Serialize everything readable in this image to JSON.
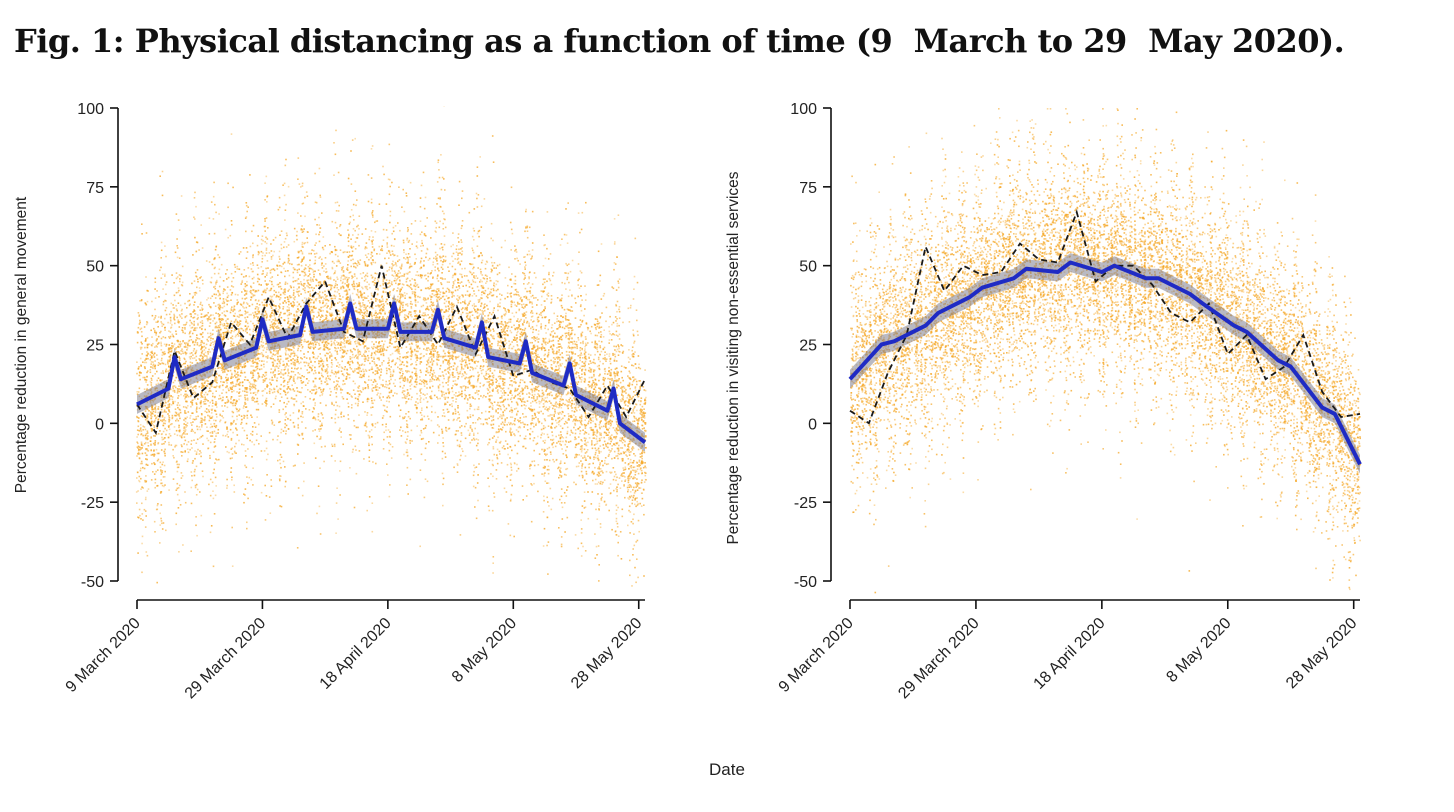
{
  "figure_title": "Fig. 1: Physical distancing as a function of time (9  March to 29  May 2020).",
  "shared_xlabel": "Date",
  "colors": {
    "points": "#f5a623",
    "fit": "#1f2bc4",
    "band": "#7f7f8f",
    "observed": "#1a1a1a"
  },
  "chart_data": [
    {
      "type": "scatter",
      "ylabel": "Percentage reduction in general movement",
      "x_ticks": [
        "9 March 2020",
        "29 March 2020",
        "18 April 2020",
        "8 May 2020",
        "28 May 2020"
      ],
      "xlim": [
        "2020-03-09",
        "2020-05-29"
      ],
      "y_ticks": [
        100,
        75,
        50,
        25,
        0,
        -25,
        -50
      ],
      "ylim": [
        -50,
        100
      ],
      "series": [
        {
          "role": "fitted",
          "x": [
            "2020-03-09",
            "2020-03-14",
            "2020-03-15",
            "2020-03-16",
            "2020-03-21",
            "2020-03-22",
            "2020-03-23",
            "2020-03-28",
            "2020-03-29",
            "2020-03-30",
            "2020-04-04",
            "2020-04-05",
            "2020-04-06",
            "2020-04-11",
            "2020-04-12",
            "2020-04-13",
            "2020-04-18",
            "2020-04-19",
            "2020-04-20",
            "2020-04-25",
            "2020-04-26",
            "2020-04-27",
            "2020-05-02",
            "2020-05-03",
            "2020-05-04",
            "2020-05-09",
            "2020-05-10",
            "2020-05-11",
            "2020-05-16",
            "2020-05-17",
            "2020-05-18",
            "2020-05-23",
            "2020-05-24",
            "2020-05-25",
            "2020-05-29"
          ],
          "y": [
            6,
            11,
            21,
            14,
            18,
            27,
            20,
            24,
            33,
            26,
            28,
            37,
            29,
            30,
            38,
            30,
            30,
            38,
            29,
            29,
            36,
            27,
            24,
            32,
            21,
            19,
            26,
            16,
            12,
            19,
            9,
            4,
            11,
            0,
            -6
          ]
        },
        {
          "role": "observed",
          "x": [
            "2020-03-09",
            "2020-03-12",
            "2020-03-15",
            "2020-03-18",
            "2020-03-21",
            "2020-03-24",
            "2020-03-27",
            "2020-03-30",
            "2020-04-02",
            "2020-04-05",
            "2020-04-08",
            "2020-04-11",
            "2020-04-14",
            "2020-04-17",
            "2020-04-20",
            "2020-04-23",
            "2020-04-26",
            "2020-04-29",
            "2020-05-02",
            "2020-05-05",
            "2020-05-08",
            "2020-05-11",
            "2020-05-14",
            "2020-05-17",
            "2020-05-20",
            "2020-05-23",
            "2020-05-26",
            "2020-05-29"
          ],
          "y": [
            6,
            -3,
            23,
            8,
            13,
            32,
            25,
            40,
            27,
            38,
            45,
            29,
            26,
            50,
            24,
            34,
            25,
            37,
            22,
            34,
            15,
            17,
            13,
            11,
            2,
            12,
            2,
            14
          ]
        }
      ]
    },
    {
      "type": "scatter",
      "ylabel": "Percentage reduction in visiting non-essential services",
      "x_ticks": [
        "9 March 2020",
        "29 March 2020",
        "18 April 2020",
        "8 May 2020",
        "28 May 2020"
      ],
      "xlim": [
        "2020-03-09",
        "2020-05-29"
      ],
      "y_ticks": [
        100,
        75,
        50,
        25,
        0,
        -25,
        -50
      ],
      "ylim": [
        -50,
        100
      ],
      "series": [
        {
          "role": "fitted",
          "x": [
            "2020-03-09",
            "2020-03-14",
            "2020-03-16",
            "2020-03-21",
            "2020-03-23",
            "2020-03-28",
            "2020-03-30",
            "2020-04-04",
            "2020-04-06",
            "2020-04-11",
            "2020-04-13",
            "2020-04-18",
            "2020-04-20",
            "2020-04-25",
            "2020-04-27",
            "2020-05-02",
            "2020-05-04",
            "2020-05-09",
            "2020-05-11",
            "2020-05-16",
            "2020-05-18",
            "2020-05-23",
            "2020-05-25",
            "2020-05-29"
          ],
          "y": [
            14,
            25,
            26,
            31,
            35,
            40,
            43,
            46,
            49,
            48,
            51,
            48,
            50,
            46,
            46,
            41,
            38,
            31,
            29,
            20,
            18,
            5,
            3,
            -13
          ]
        },
        {
          "role": "observed",
          "x": [
            "2020-03-09",
            "2020-03-12",
            "2020-03-15",
            "2020-03-18",
            "2020-03-21",
            "2020-03-24",
            "2020-03-27",
            "2020-03-30",
            "2020-04-02",
            "2020-04-05",
            "2020-04-08",
            "2020-04-11",
            "2020-04-14",
            "2020-04-17",
            "2020-04-20",
            "2020-04-23",
            "2020-04-26",
            "2020-04-29",
            "2020-05-02",
            "2020-05-05",
            "2020-05-08",
            "2020-05-11",
            "2020-05-14",
            "2020-05-17",
            "2020-05-20",
            "2020-05-23",
            "2020-05-26",
            "2020-05-29"
          ],
          "y": [
            4,
            0,
            16,
            28,
            56,
            42,
            50,
            47,
            48,
            57,
            52,
            51,
            67,
            45,
            50,
            50,
            44,
            35,
            32,
            38,
            22,
            28,
            14,
            18,
            28,
            10,
            2,
            3
          ]
        }
      ]
    }
  ]
}
